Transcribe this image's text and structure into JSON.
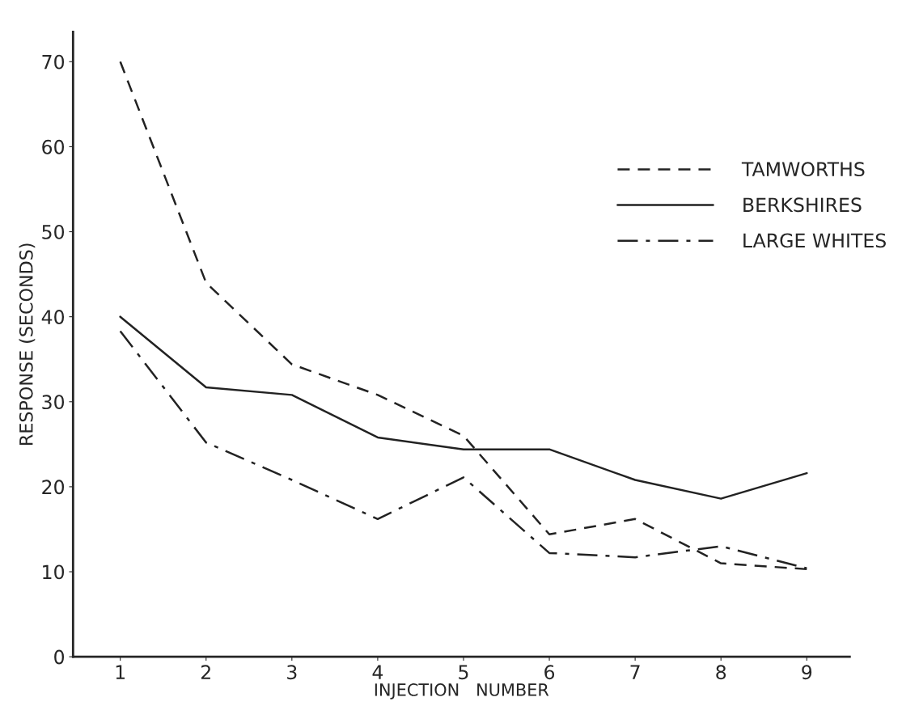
{
  "chart_data": {
    "type": "line",
    "xlabel": "INJECTION   NUMBER",
    "ylabel": "RESPONSE (SECONDS)",
    "x": [
      1,
      2,
      3,
      4,
      5,
      6,
      7,
      8,
      9
    ],
    "series": [
      {
        "name": "TAMWORTHS",
        "color": "#222222",
        "line_style": "dashed",
        "values": [
          70,
          44,
          34.4,
          30.8,
          26,
          14.4,
          16.2,
          11,
          10.3
        ]
      },
      {
        "name": "BERKSHIRES",
        "color": "#222222",
        "line_style": "solid",
        "values": [
          40,
          31.7,
          30.8,
          25.8,
          24.4,
          24.4,
          20.8,
          18.6,
          21.6
        ]
      },
      {
        "name": "LARGE WHITES",
        "color": "#222222",
        "line_style": "dashdot",
        "values": [
          38.3,
          25.2,
          20.8,
          16.2,
          21.1,
          12.2,
          11.7,
          13,
          10.4
        ]
      }
    ],
    "xlim": [
      0.45,
      9.5
    ],
    "ylim": [
      0,
      73.5
    ],
    "xticks": [
      1,
      2,
      3,
      4,
      5,
      6,
      7,
      8,
      9
    ],
    "yticks": [
      0,
      10,
      20,
      30,
      40,
      50,
      60,
      70
    ],
    "grid": false,
    "legend": "top right",
    "marker": "none"
  }
}
